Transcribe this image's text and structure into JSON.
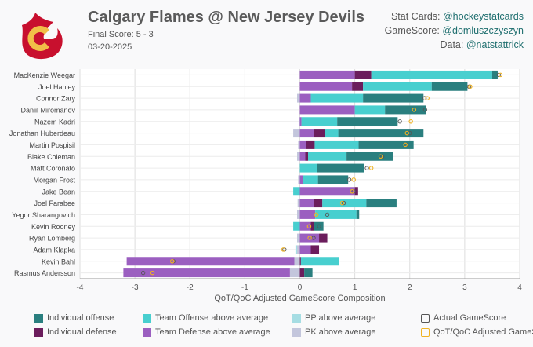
{
  "header": {
    "title": "Calgary Flames @ New Jersey Devils",
    "final_score": "Final Score: 5 - 3",
    "date": "03-20-2025"
  },
  "credits": [
    {
      "label": "Stat Cards:",
      "handle": "@hockeystatcards"
    },
    {
      "label": "GameScore:",
      "handle": "@domluszczyszyn"
    },
    {
      "label": "Data:",
      "handle": "@natstattrick"
    }
  ],
  "colors": {
    "individual_offense": "#2a7f7f",
    "team_offense": "#48cfcf",
    "pp": "#a6dde3",
    "individual_defense": "#6b1d5c",
    "team_defense": "#9b5fc0",
    "pk": "#c3c6dc",
    "actual_marker": "#555555",
    "adjusted_marker": "#f0b323",
    "logo_red": "#c8102e",
    "logo_gold": "#f1be48"
  },
  "legend": [
    {
      "key": "individual_offense",
      "label": "Individual offense",
      "style": "fill"
    },
    {
      "key": "team_offense",
      "label": "Team Offense above average",
      "style": "fill"
    },
    {
      "key": "pp",
      "label": "PP above average",
      "style": "fill"
    },
    {
      "key": "actual_marker",
      "label": "Actual GameScore",
      "style": "outline"
    },
    {
      "key": "individual_defense",
      "label": "Individual defense",
      "style": "fill"
    },
    {
      "key": "team_defense",
      "label": "Team Defense above average",
      "style": "fill"
    },
    {
      "key": "pk",
      "label": "PK above average",
      "style": "fill"
    },
    {
      "key": "adjusted_marker",
      "label": "QoT/QoC Adjusted GameScore",
      "style": "outline"
    }
  ],
  "chart_data": {
    "type": "bar",
    "orientation": "horizontal",
    "stacked": true,
    "xlabel": "QoT/QoC Adjusted GameScore Composition",
    "xlim": [
      -4,
      4
    ],
    "xticks": [
      -4,
      -3,
      -2,
      -1,
      0,
      1,
      2,
      3,
      4
    ],
    "grid": true,
    "players": [
      "MacKenzie Weegar",
      "Joel Hanley",
      "Connor Zary",
      "Daniil Miromanov",
      "Nazem Kadri",
      "Jonathan Huberdeau",
      "Martin Pospisil",
      "Blake Coleman",
      "Matt Coronato",
      "Morgan Frost",
      "Jake Bean",
      "Joel Farabee",
      "Yegor Sharangovich",
      "Kevin Rooney",
      "Ryan Lomberg",
      "Adam Klapka",
      "Kevin Bahl",
      "Rasmus Andersson"
    ],
    "series": [
      {
        "name": "PK above average",
        "key": "pk",
        "values": [
          0,
          0,
          -0.05,
          0,
          -0.02,
          -0.12,
          -0.03,
          -0.05,
          0,
          -0.03,
          0,
          -0.04,
          -0.05,
          0,
          -0.05,
          -0.05,
          -0.1,
          -0.18
        ]
      },
      {
        "name": "Team Defense above average",
        "key": "team_defense",
        "values": [
          1.0,
          0.95,
          0.2,
          1.0,
          0.03,
          0.25,
          0.12,
          0.1,
          0,
          0.05,
          1.0,
          0.26,
          0.28,
          0.2,
          0.35,
          0.2,
          -3.05,
          -3.03
        ]
      },
      {
        "name": "Individual defense",
        "key": "individual_defense",
        "values": [
          0.3,
          0.2,
          0,
          0,
          0,
          0.2,
          0.15,
          0.05,
          0,
          0,
          0.06,
          0.15,
          0,
          0.05,
          0.15,
          0.15,
          0.02,
          0.08
        ]
      },
      {
        "name": "Team Offense above average",
        "key": "team_offense",
        "values": [
          2.2,
          1.25,
          0.95,
          0.55,
          0.65,
          0.25,
          0.8,
          0.7,
          0.32,
          0.28,
          -0.12,
          0.8,
          0.75,
          -0.12,
          0,
          0,
          0.7,
          0
        ]
      },
      {
        "name": "PP above average",
        "key": "pp",
        "values": [
          0,
          0,
          0,
          0,
          0,
          0,
          0,
          0,
          0,
          0,
          0,
          0,
          0,
          0,
          0,
          -0.03,
          0,
          0
        ]
      },
      {
        "name": "Individual offense",
        "key": "individual_offense",
        "values": [
          0.1,
          0.65,
          1.1,
          0.75,
          1.1,
          1.55,
          1.0,
          0.85,
          0.85,
          0.55,
          0,
          0.55,
          0.05,
          0.18,
          0,
          0,
          0,
          0.15
        ]
      }
    ],
    "actual_gamescore": [
      3.62,
      3.08,
      2.27,
      2.28,
      1.82,
      2.0,
      1.93,
      1.5,
      1.22,
      0.9,
      0.98,
      0.8,
      0.5,
      0.35,
      0.25,
      -0.28,
      -2.3,
      -2.85
    ],
    "adjusted_gamescore": [
      3.65,
      3.1,
      2.32,
      2.08,
      2.02,
      1.95,
      1.92,
      1.47,
      1.3,
      0.98,
      0.95,
      0.77,
      0.3,
      0.17,
      0.18,
      -0.3,
      -2.32,
      -2.68
    ]
  }
}
